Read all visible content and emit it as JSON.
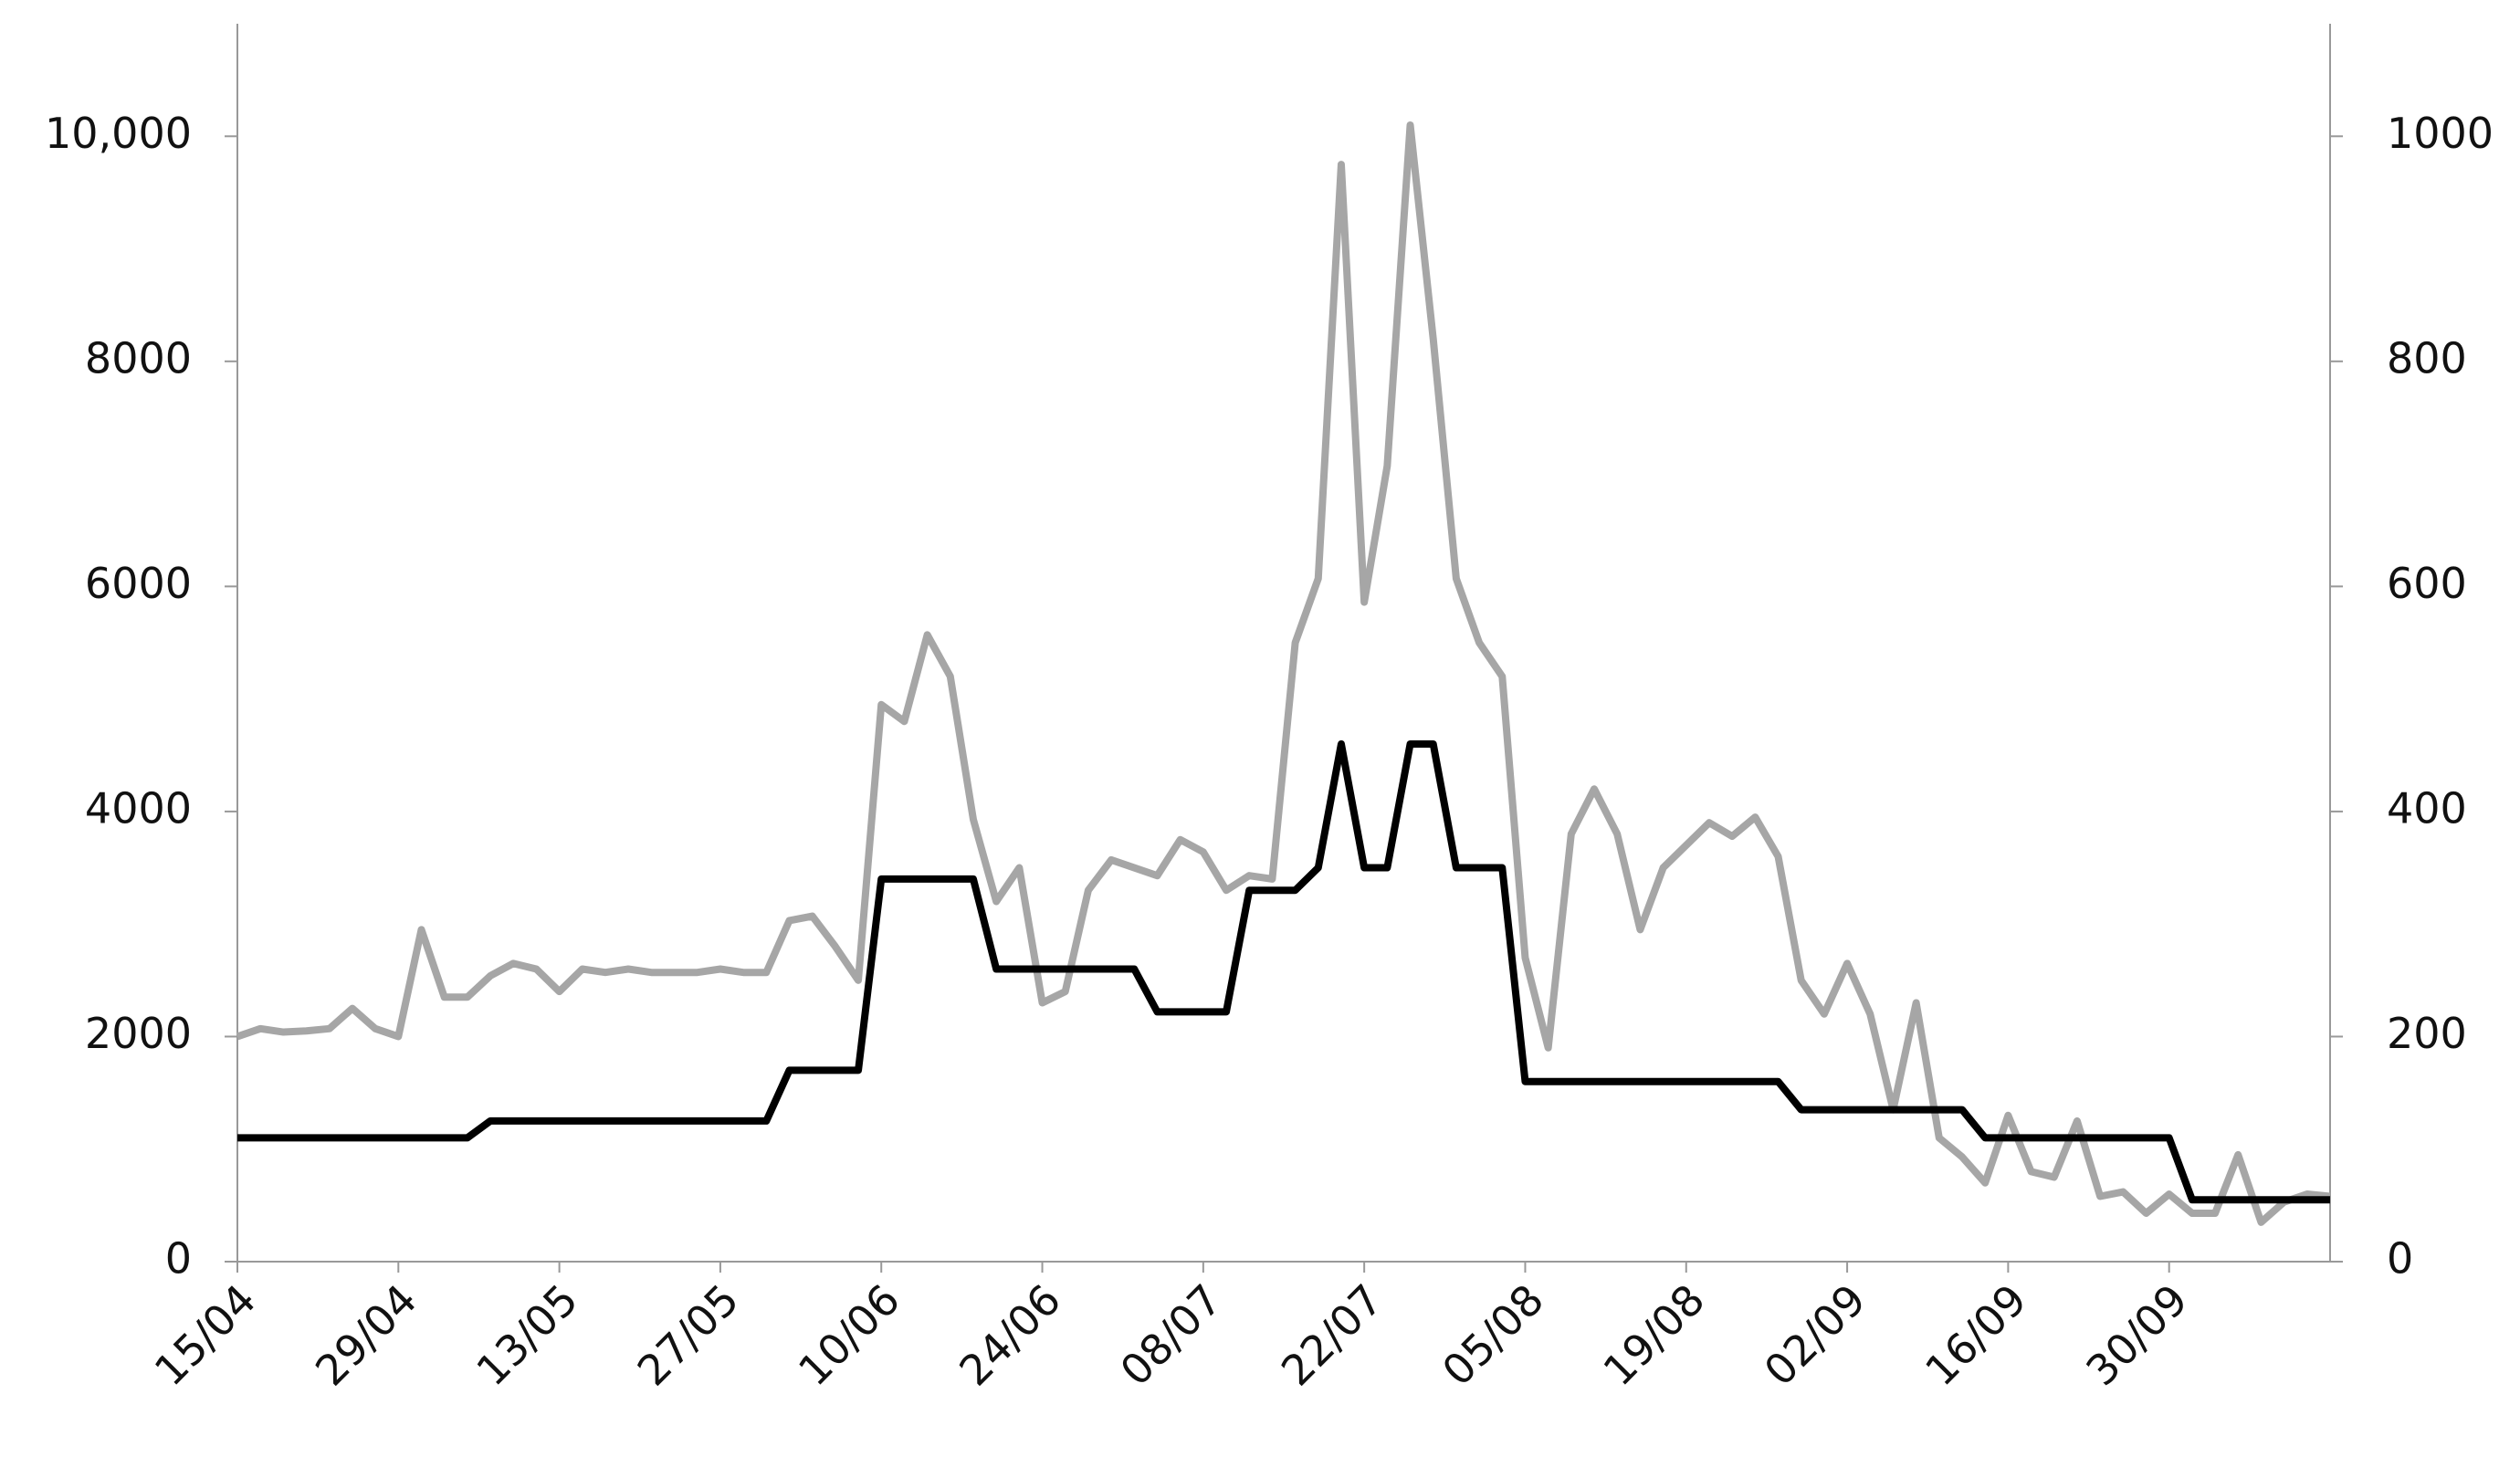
{
  "chart_data": {
    "type": "line",
    "categories": [
      "15/04",
      null,
      null,
      null,
      null,
      null,
      null,
      "29/04",
      null,
      null,
      null,
      null,
      null,
      null,
      "13/05",
      null,
      null,
      null,
      null,
      null,
      null,
      "27/05",
      null,
      null,
      null,
      null,
      null,
      null,
      "10/06",
      null,
      null,
      null,
      null,
      null,
      null,
      "24/06",
      null,
      null,
      null,
      null,
      null,
      null,
      "08/07",
      null,
      null,
      null,
      null,
      null,
      null,
      "22/07",
      null,
      null,
      null,
      null,
      null,
      null,
      "05/08",
      null,
      null,
      null,
      null,
      null,
      null,
      "19/08",
      null,
      null,
      null,
      null,
      null,
      null,
      "02/09",
      null,
      null,
      null,
      null,
      null,
      null,
      "16/09",
      null,
      null,
      null,
      null,
      null,
      null,
      "30/09",
      null,
      null,
      null,
      null,
      null,
      null,
      null
    ],
    "series": [
      {
        "color": "#a6a6a6",
        "axis": "y",
        "values": [
          2000,
          2070,
          2040,
          2050,
          2070,
          2250,
          2070,
          2000,
          2950,
          2350,
          2350,
          2540,
          2650,
          2600,
          2400,
          2600,
          2570,
          2600,
          2570,
          2570,
          2570,
          2600,
          2570,
          2570,
          3030,
          3070,
          2800,
          2500,
          4950,
          4800,
          5570,
          5200,
          3930,
          3200,
          3500,
          2300,
          2400,
          3300,
          3570,
          3500,
          3430,
          3750,
          3640,
          3300,
          3430,
          3400,
          5500,
          6070,
          9750,
          5860,
          7070,
          10100,
          8200,
          6070,
          5500,
          5200,
          2700,
          1900,
          3800,
          4200,
          3800,
          2950,
          3500,
          3700,
          3900,
          3780,
          3950,
          3600,
          2500,
          2200,
          2650,
          2200,
          1350,
          2300,
          1100,
          930,
          700,
          1300,
          800,
          750,
          1250,
          580,
          620,
          430,
          600,
          430,
          430,
          950,
          350,
          530,
          600,
          580
        ]
      },
      {
        "color": "#000000",
        "axis": "y2",
        "values": [
          110,
          110,
          110,
          110,
          110,
          110,
          110,
          110,
          110,
          110,
          110,
          125,
          125,
          125,
          125,
          125,
          125,
          125,
          125,
          125,
          125,
          125,
          125,
          125,
          170,
          170,
          170,
          170,
          340,
          340,
          340,
          340,
          340,
          260,
          260,
          260,
          260,
          260,
          260,
          260,
          222,
          222,
          222,
          222,
          330,
          330,
          330,
          350,
          460,
          350,
          350,
          460,
          460,
          350,
          350,
          350,
          160,
          160,
          160,
          160,
          160,
          160,
          160,
          160,
          160,
          160,
          160,
          160,
          135,
          135,
          135,
          135,
          135,
          135,
          135,
          135,
          110,
          110,
          110,
          110,
          110,
          110,
          110,
          110,
          110,
          55,
          55,
          55,
          55,
          55,
          55,
          55
        ]
      }
    ],
    "ylim": [
      0,
      11000
    ],
    "yticks": [
      0,
      2000,
      4000,
      6000,
      8000,
      {
        "value": 10000,
        "label": "10,000"
      }
    ],
    "y2lim": [
      0,
      1100
    ],
    "y2ticks": [
      0,
      200,
      400,
      600,
      800,
      1000
    ]
  }
}
